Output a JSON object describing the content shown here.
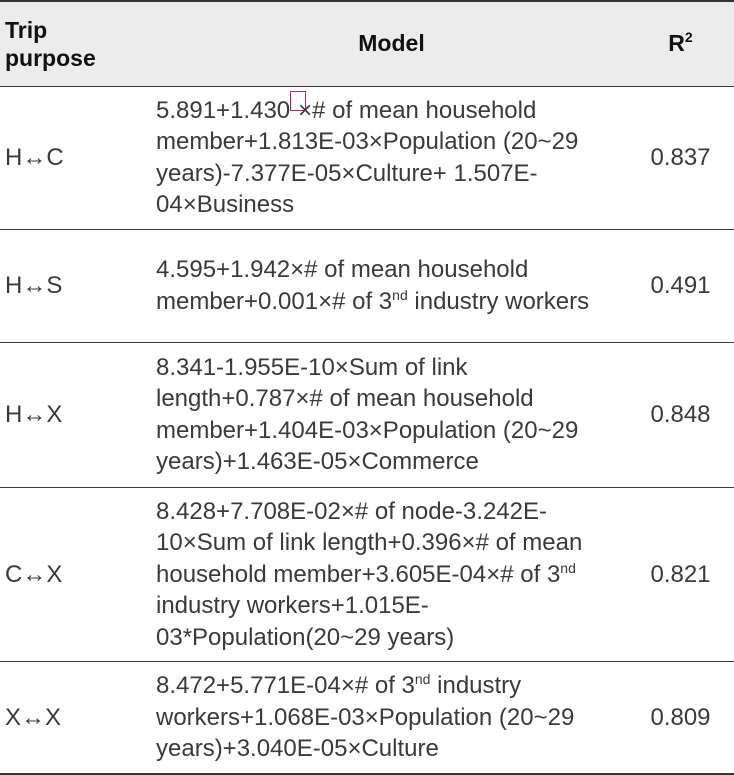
{
  "header": {
    "purpose_line1": "Trip",
    "purpose_line2": "purpose",
    "model": "Model",
    "r2_base": "R",
    "r2_sup": "2"
  },
  "rows": [
    {
      "purpose": "H↔C",
      "model_parts": [
        "5.891+1.430",
        "×# of mean household member+1.813E-03×Population (20~29 years)-7.377E-05×Culture+ 1.507E-04×Business"
      ],
      "r2": "0.837"
    },
    {
      "purpose": "H↔S",
      "model_parts": [
        "4.595+1.942×# of mean household member+0.001×# of 3",
        "nd",
        " industry workers"
      ],
      "r2": "0.491"
    },
    {
      "purpose": "H↔X",
      "model_parts": [
        "8.341-1.955E-10×Sum of link length+0.787×# of mean household member+1.404E-03×Population (20~29 years)+1.463E-05×Commerce"
      ],
      "r2": "0.848"
    },
    {
      "purpose": "C↔X",
      "model_parts": [
        "8.428+7.708E-02×# of node-3.242E-10×Sum of link length+0.396×# of mean household member+3.605E-04×# of 3",
        "nd",
        " industry workers+1.015E-03*Population(20~29 years)"
      ],
      "r2": "0.821"
    },
    {
      "purpose": "X↔X",
      "model_parts": [
        "8.472+5.771E-04×# of 3",
        "nd",
        " industry workers+1.068E-03×Population (20~29 years)+3.040E-05×Culture"
      ],
      "r2": "0.809"
    }
  ]
}
